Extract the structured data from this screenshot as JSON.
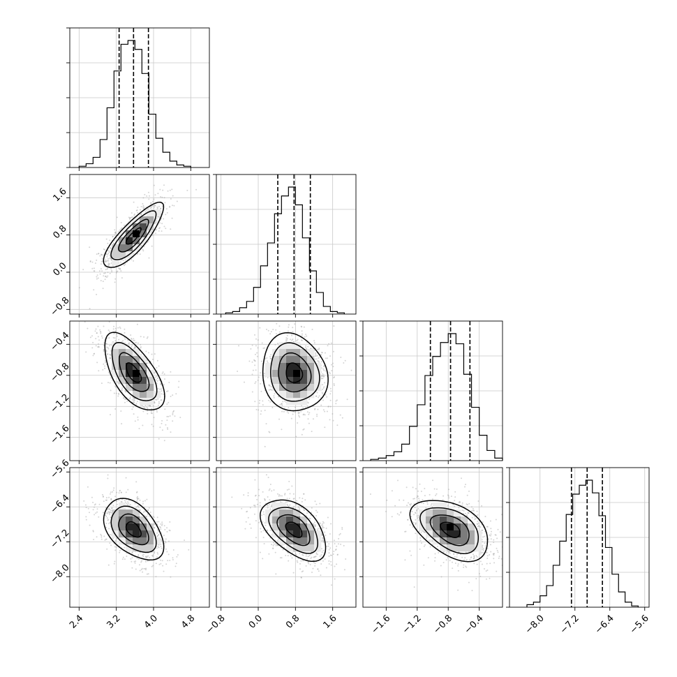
{
  "chart_data": {
    "type": "corner",
    "title": "",
    "grid": true,
    "parameters": [
      {
        "index": 0,
        "xlim": [
          2.2,
          5.2
        ],
        "ticks": [
          2.4,
          3.2,
          4.0,
          4.8
        ],
        "tick_labels": [
          "2.4",
          "3.2",
          "4.0",
          "4.8"
        ],
        "quantiles": [
          3.26,
          3.57,
          3.89
        ],
        "median": 3.57,
        "sigma": 0.32
      },
      {
        "index": 1,
        "xlim": [
          -0.9,
          2.1
        ],
        "ticks": [
          -0.8,
          0.0,
          0.8,
          1.6
        ],
        "tick_labels": [
          "−0.8",
          "0.0",
          "0.8",
          "1.6"
        ],
        "quantiles": [
          0.42,
          0.77,
          1.12
        ],
        "median": 0.77,
        "sigma": 0.35
      },
      {
        "index": 2,
        "xlim": [
          -1.9,
          -0.1
        ],
        "ticks": [
          -1.6,
          -1.2,
          -0.8,
          -0.4
        ],
        "tick_labels": [
          "−1.6",
          "−1.2",
          "−0.8",
          "−0.4"
        ],
        "quantiles": [
          -1.03,
          -0.77,
          -0.52
        ],
        "median": -0.77,
        "sigma": 0.25
      },
      {
        "index": 3,
        "xlim": [
          -8.7,
          -5.5
        ],
        "ticks": [
          -8.0,
          -7.2,
          -6.4,
          -5.6
        ],
        "tick_labels": [
          "−8.0",
          "−7.2",
          "−6.4",
          "−5.6"
        ],
        "quantiles": [
          -7.28,
          -6.92,
          -6.57
        ],
        "median": -6.92,
        "sigma": 0.35
      }
    ],
    "histograms": [
      {
        "param": 0,
        "bin_edges": [
          2.4,
          2.55,
          2.7,
          2.85,
          3.0,
          3.15,
          3.3,
          3.45,
          3.6,
          3.75,
          3.9,
          4.05,
          4.2,
          4.35,
          4.5,
          4.65,
          4.8
        ],
        "counts": [
          0.01,
          0.03,
          0.08,
          0.22,
          0.47,
          0.76,
          0.97,
          1.0,
          0.93,
          0.74,
          0.42,
          0.23,
          0.12,
          0.05,
          0.02,
          0.01
        ]
      },
      {
        "param": 1,
        "bin_edges": [
          -0.7,
          -0.55,
          -0.4,
          -0.25,
          -0.1,
          0.05,
          0.2,
          0.35,
          0.5,
          0.65,
          0.8,
          0.95,
          1.1,
          1.25,
          1.4,
          1.55,
          1.7,
          1.85
        ],
        "counts": [
          0.01,
          0.02,
          0.05,
          0.1,
          0.21,
          0.38,
          0.56,
          0.79,
          0.93,
          1.0,
          0.86,
          0.6,
          0.34,
          0.17,
          0.06,
          0.02,
          0.01
        ]
      },
      {
        "param": 2,
        "bin_edges": [
          -1.8,
          -1.7,
          -1.6,
          -1.5,
          -1.4,
          -1.3,
          -1.2,
          -1.1,
          -1.0,
          -0.9,
          -0.8,
          -0.7,
          -0.6,
          -0.5,
          -0.4,
          -0.3,
          -0.2,
          -0.1
        ],
        "counts": [
          0.01,
          0.02,
          0.04,
          0.07,
          0.13,
          0.27,
          0.44,
          0.67,
          0.82,
          0.93,
          1.0,
          0.92,
          0.68,
          0.42,
          0.2,
          0.08,
          0.02
        ]
      },
      {
        "param": 3,
        "bin_edges": [
          -8.3,
          -8.15,
          -8.0,
          -7.85,
          -7.7,
          -7.55,
          -7.4,
          -7.25,
          -7.1,
          -6.95,
          -6.8,
          -6.65,
          -6.5,
          -6.35,
          -6.2,
          -6.05,
          -5.9,
          -5.75
        ],
        "counts": [
          0.02,
          0.04,
          0.09,
          0.17,
          0.33,
          0.52,
          0.73,
          0.89,
          0.96,
          1.0,
          0.9,
          0.72,
          0.47,
          0.26,
          0.12,
          0.04,
          0.01
        ]
      }
    ],
    "pairs": [
      {
        "x_param": 0,
        "y_param": 1,
        "x_mean": 3.57,
        "y_mean": 0.77,
        "x_sigma": 0.32,
        "y_sigma": 0.35,
        "correlation": 0.82
      },
      {
        "x_param": 0,
        "y_param": 2,
        "x_mean": 3.57,
        "y_mean": -0.77,
        "x_sigma": 0.32,
        "y_sigma": 0.25,
        "correlation": -0.62
      },
      {
        "x_param": 1,
        "y_param": 2,
        "x_mean": 0.77,
        "y_mean": -0.77,
        "x_sigma": 0.35,
        "y_sigma": 0.25,
        "correlation": -0.12
      },
      {
        "x_param": 0,
        "y_param": 3,
        "x_mean": 3.57,
        "y_mean": -6.92,
        "x_sigma": 0.32,
        "y_sigma": 0.35,
        "correlation": -0.45
      },
      {
        "x_param": 1,
        "y_param": 3,
        "x_mean": 0.77,
        "y_mean": -6.92,
        "x_sigma": 0.35,
        "y_sigma": 0.35,
        "correlation": -0.5
      },
      {
        "x_param": 2,
        "y_param": 3,
        "x_mean": -0.77,
        "y_mean": -6.92,
        "x_sigma": 0.25,
        "y_sigma": 0.35,
        "correlation": -0.45
      }
    ],
    "contour_levels": [
      0.5,
      1.0,
      1.5,
      2.0
    ],
    "scatter_color": "#a0a0a0",
    "density_color": "#000000"
  }
}
